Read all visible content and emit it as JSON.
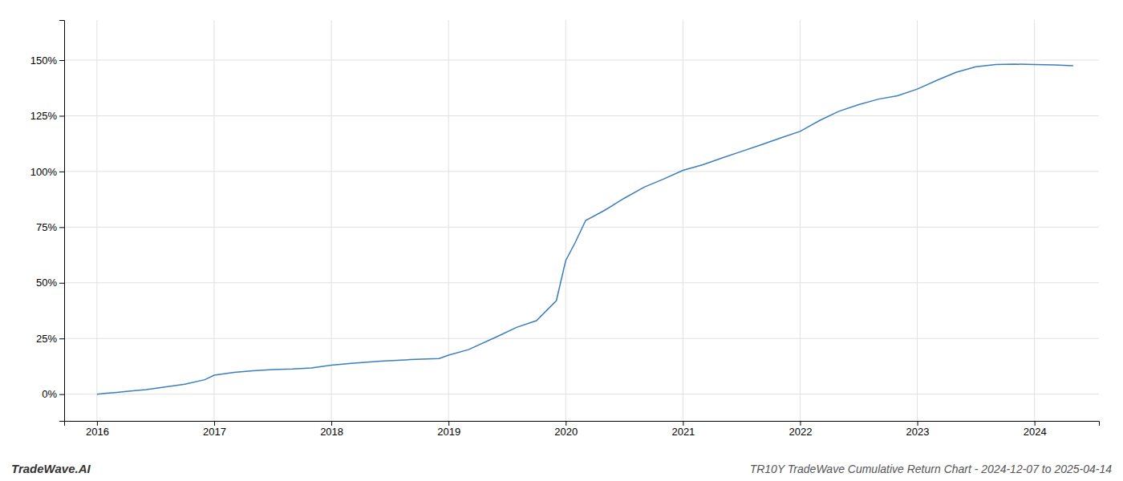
{
  "chart_data": {
    "type": "line",
    "title": "TR10Y TradeWave Cumulative Return Chart - 2024-12-07 to 2025-04-14",
    "annotations": [
      "TradeWave.AI"
    ],
    "color": "#3a7ebf",
    "grid": true,
    "x": [
      2016.0,
      2016.08,
      2016.17,
      2016.25,
      2016.42,
      2016.58,
      2016.75,
      2016.92,
      2017.0,
      2017.17,
      2017.33,
      2017.5,
      2017.67,
      2017.83,
      2018.0,
      2018.17,
      2018.42,
      2018.67,
      2018.92,
      2019.0,
      2019.17,
      2019.42,
      2019.58,
      2019.75,
      2019.92,
      2020.0,
      2020.08,
      2020.17,
      2020.33,
      2020.5,
      2020.67,
      2020.83,
      2021.0,
      2021.17,
      2021.33,
      2021.5,
      2021.67,
      2021.83,
      2022.0,
      2022.17,
      2022.33,
      2022.5,
      2022.67,
      2022.83,
      2023.0,
      2023.17,
      2023.33,
      2023.5,
      2023.67,
      2023.83,
      2024.0,
      2024.17,
      2024.33
    ],
    "values": [
      0.0,
      0.4,
      0.8,
      1.2,
      2.0,
      3.2,
      4.5,
      6.5,
      8.5,
      9.8,
      10.5,
      11.0,
      11.3,
      11.8,
      13.0,
      13.8,
      14.8,
      15.5,
      16.0,
      17.5,
      20.0,
      26.0,
      30.0,
      33.0,
      42.0,
      60.0,
      68.0,
      78.0,
      82.5,
      88.0,
      93.0,
      96.5,
      100.5,
      103.0,
      106.0,
      109.0,
      112.0,
      115.0,
      118.0,
      123.0,
      127.0,
      130.0,
      132.5,
      134.0,
      137.0,
      141.0,
      144.5,
      147.0,
      148.0,
      148.2,
      148.0,
      147.8,
      147.5
    ],
    "xlim": [
      2015.72,
      2024.55
    ],
    "ylim": [
      -12,
      168
    ],
    "xticks": [
      2016,
      2017,
      2018,
      2019,
      2020,
      2021,
      2022,
      2023,
      2024
    ],
    "yticks": [
      {
        "value": 0,
        "label": "0%"
      },
      {
        "value": 25,
        "label": "25%"
      },
      {
        "value": 50,
        "label": "50%"
      },
      {
        "value": 75,
        "label": "75%"
      },
      {
        "value": 100,
        "label": "100%"
      },
      {
        "value": 125,
        "label": "125%"
      },
      {
        "value": 150,
        "label": "150%"
      }
    ]
  }
}
